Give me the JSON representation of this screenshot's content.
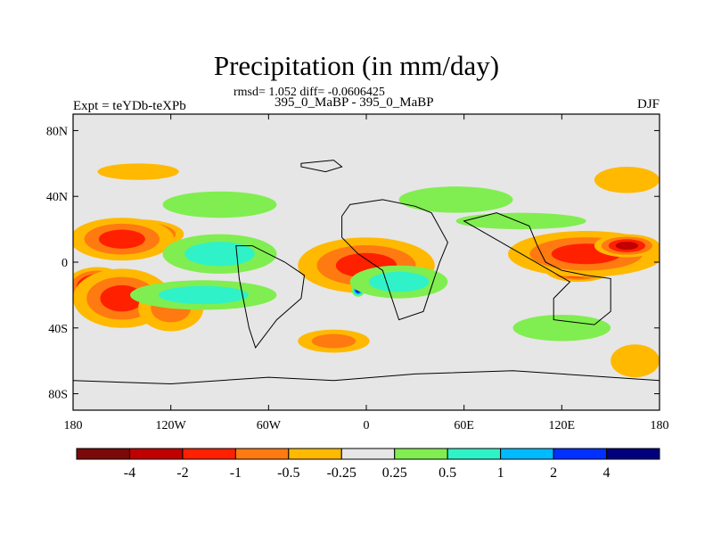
{
  "chart_data": {
    "type": "heatmap",
    "title": "Precipitation (in mm/day)",
    "stats": "rmsd= 1.052 diff= -0.0606425",
    "subtitle": "395_0_MaBP - 395_0_MaBP",
    "left_label": "Expt = teYDb-teXPb",
    "right_label": "DJF",
    "x_range": [
      -180,
      180
    ],
    "y_range": [
      -90,
      90
    ],
    "x_ticks": [
      {
        "value": -180,
        "label": "180"
      },
      {
        "value": -120,
        "label": "120W"
      },
      {
        "value": -60,
        "label": "60W"
      },
      {
        "value": 0,
        "label": "0"
      },
      {
        "value": 60,
        "label": "60E"
      },
      {
        "value": 120,
        "label": "120E"
      },
      {
        "value": 180,
        "label": "180"
      }
    ],
    "y_ticks": [
      {
        "value": 80,
        "label": "80N"
      },
      {
        "value": 40,
        "label": "40N"
      },
      {
        "value": 0,
        "label": "0"
      },
      {
        "value": -40,
        "label": "40S"
      },
      {
        "value": -80,
        "label": "80S"
      }
    ],
    "colorbar": {
      "colors": [
        "#7a0a0a",
        "#c00000",
        "#ff2000",
        "#ff7a10",
        "#ffb900",
        "#e6e6e6",
        "#80ee50",
        "#30f2c8",
        "#00baff",
        "#0030ff",
        "#00007e"
      ],
      "labels": [
        "-4",
        "-2",
        "-1",
        "-0.5",
        "-0.25",
        "0.25",
        "0.5",
        "1",
        "2",
        "4"
      ]
    },
    "anomaly_blobs": [
      {
        "lon": -140,
        "lat": 17,
        "rlon": 28,
        "rlat": 9,
        "level": -4
      },
      {
        "lon": -150,
        "lat": 14,
        "rlon": 32,
        "rlat": 13,
        "level": -1
      },
      {
        "lon": -165,
        "lat": -15,
        "rlon": 20,
        "rlat": 12,
        "level": -4
      },
      {
        "lon": -150,
        "lat": -22,
        "rlon": 30,
        "rlat": 18,
        "level": -1
      },
      {
        "lon": -120,
        "lat": -28,
        "rlon": 20,
        "rlat": 14,
        "level": -0.5
      },
      {
        "lon": 5,
        "lat": 2,
        "rlon": 25,
        "rlat": 9,
        "level": -4
      },
      {
        "lon": 0,
        "lat": -2,
        "rlon": 42,
        "rlat": 17,
        "level": -1
      },
      {
        "lon": 130,
        "lat": -5,
        "rlon": 20,
        "rlat": 7,
        "level": -4
      },
      {
        "lon": 135,
        "lat": 5,
        "rlon": 48,
        "rlat": 14,
        "level": -1
      },
      {
        "lon": 160,
        "lat": 10,
        "rlon": 20,
        "rlat": 7,
        "level": -2
      },
      {
        "lon": -90,
        "lat": 5,
        "rlon": 35,
        "rlat": 12,
        "level": 1
      },
      {
        "lon": -100,
        "lat": -20,
        "rlon": 45,
        "rlat": 9,
        "level": 1
      },
      {
        "lon": -5,
        "lat": -17,
        "rlon": 4,
        "rlat": 4,
        "level": 4
      },
      {
        "lon": 32,
        "lat": -14,
        "rlon": 6,
        "rlat": 5,
        "level": 4
      },
      {
        "lon": 20,
        "lat": -12,
        "rlon": 30,
        "rlat": 10,
        "level": 1
      },
      {
        "lon": -90,
        "lat": 35,
        "rlon": 35,
        "rlat": 8,
        "level": 0.5
      },
      {
        "lon": 55,
        "lat": 38,
        "rlon": 35,
        "rlat": 8,
        "level": 0.5
      },
      {
        "lon": 95,
        "lat": 25,
        "rlon": 40,
        "rlat": 5,
        "level": 0.5
      },
      {
        "lon": -140,
        "lat": 55,
        "rlon": 25,
        "rlat": 5,
        "level": -0.25
      },
      {
        "lon": 160,
        "lat": 50,
        "rlon": 20,
        "rlat": 8,
        "level": -0.25
      },
      {
        "lon": -20,
        "lat": -48,
        "rlon": 22,
        "rlat": 7,
        "level": -0.5
      },
      {
        "lon": 120,
        "lat": -40,
        "rlon": 30,
        "rlat": 8,
        "level": 0.5
      },
      {
        "lon": 165,
        "lat": -60,
        "rlon": 15,
        "rlat": 10,
        "level": -0.25
      }
    ]
  }
}
